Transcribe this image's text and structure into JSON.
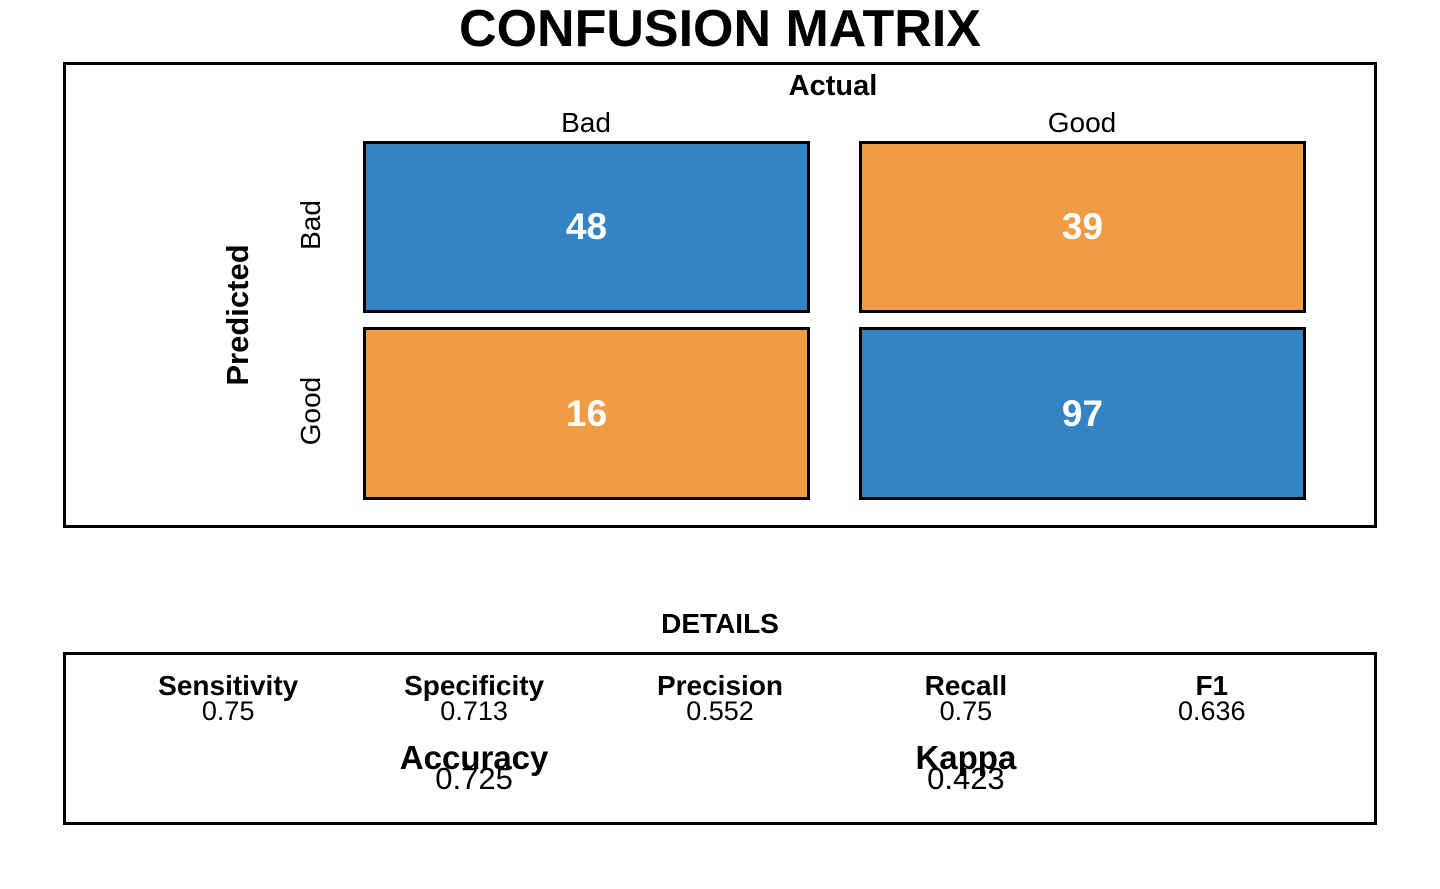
{
  "title": "CONFUSION MATRIX",
  "matrix_panel": {
    "axis_top": "Actual",
    "axis_left": "Predicted",
    "col_labels": [
      "Bad",
      "Good"
    ],
    "row_labels": [
      "Bad",
      "Good"
    ],
    "cells": [
      {
        "row": "Bad",
        "col": "Bad",
        "value": "48",
        "color": "#3483C3"
      },
      {
        "row": "Bad",
        "col": "Good",
        "value": "39",
        "color": "#F09C44"
      },
      {
        "row": "Good",
        "col": "Bad",
        "value": "16",
        "color": "#F09C44"
      },
      {
        "row": "Good",
        "col": "Good",
        "value": "97",
        "color": "#3483C3"
      }
    ]
  },
  "details": {
    "heading": "DETAILS",
    "stats": [
      {
        "label": "Sensitivity",
        "value": "0.75"
      },
      {
        "label": "Specificity",
        "value": "0.713"
      },
      {
        "label": "Precision",
        "value": "0.552"
      },
      {
        "label": "Recall",
        "value": "0.75"
      },
      {
        "label": "F1",
        "value": "0.636"
      }
    ],
    "overall": [
      {
        "label": "Accuracy",
        "value": "0.725"
      },
      {
        "label": "Kappa",
        "value": "0.423"
      }
    ]
  },
  "colors": {
    "positive_cell": "#3483C3",
    "negative_cell": "#F09C44",
    "cell_text": "#FFFFFF",
    "border": "#000000"
  },
  "chart_data": {
    "type": "heatmap",
    "title": "CONFUSION MATRIX",
    "xlabel": "Actual",
    "ylabel": "Predicted",
    "column_labels": [
      "Bad",
      "Good"
    ],
    "row_labels": [
      "Bad",
      "Good"
    ],
    "matrix": [
      [
        48,
        39
      ],
      [
        16,
        97
      ]
    ],
    "cell_colors": [
      [
        "#3483C3",
        "#F09C44"
      ],
      [
        "#F09C44",
        "#3483C3"
      ]
    ],
    "metrics": {
      "Sensitivity": 0.75,
      "Specificity": 0.713,
      "Precision": 0.552,
      "Recall": 0.75,
      "F1": 0.636,
      "Accuracy": 0.725,
      "Kappa": 0.423
    },
    "legend_position": "none",
    "grid": false
  }
}
